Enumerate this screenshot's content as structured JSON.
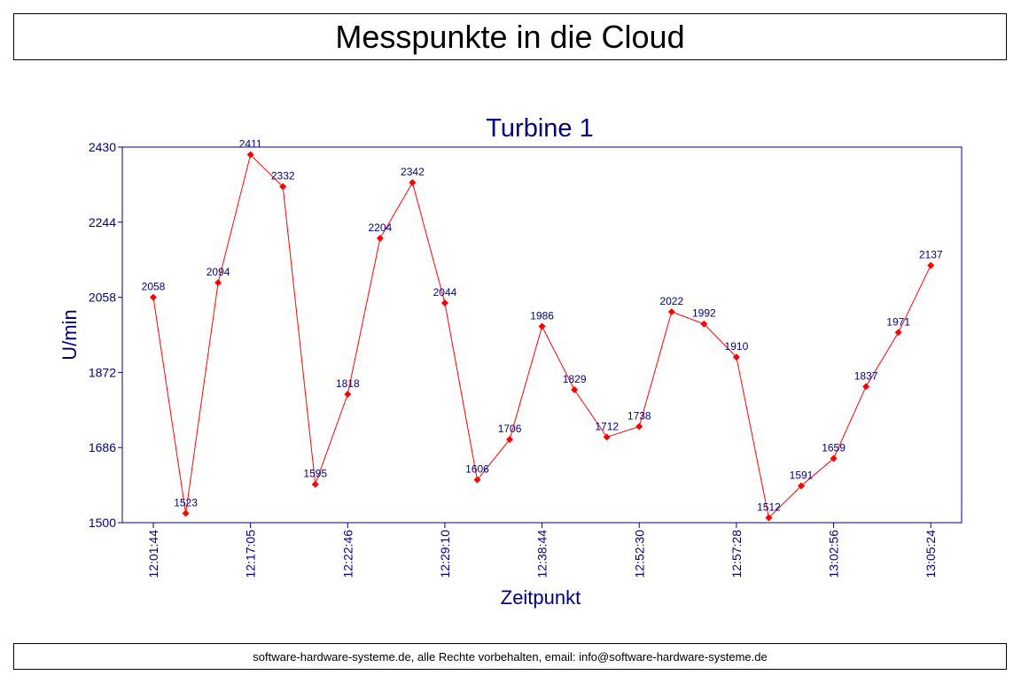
{
  "header": {
    "title": "Messpunkte in die Cloud"
  },
  "footer": {
    "text": "software-hardware-systeme.de, alle Rechte vorbehalten, email: info@software-hardware-systeme.de"
  },
  "colors": {
    "text": "#00007f",
    "line": "#ff0000",
    "marker": "#ff0000",
    "frame": "#000080"
  },
  "chart_data": {
    "type": "line",
    "title": "Turbine 1",
    "xlabel": "Zeitpunkt",
    "ylabel": "U/min",
    "ylim": [
      1500,
      2430
    ],
    "yticks": [
      1500,
      1686,
      1872,
      2058,
      2244,
      2430
    ],
    "grid": false,
    "legend": "none",
    "values": [
      2058,
      1523,
      2094,
      2411,
      2332,
      1595,
      1818,
      2204,
      2342,
      2044,
      1606,
      1706,
      1986,
      1829,
      1712,
      1738,
      2022,
      1992,
      1910,
      1512,
      1591,
      1659,
      1837,
      1971,
      2137
    ],
    "xtick_labels": [
      {
        "index": 0,
        "label": "12:01:44"
      },
      {
        "index": 3,
        "label": "12:17:05"
      },
      {
        "index": 6,
        "label": "12:22:46"
      },
      {
        "index": 9,
        "label": "12:29:10"
      },
      {
        "index": 12,
        "label": "12:38:44"
      },
      {
        "index": 15,
        "label": "12:52:30"
      },
      {
        "index": 18,
        "label": "12:57:28"
      },
      {
        "index": 21,
        "label": "13:02:56"
      },
      {
        "index": 24,
        "label": "13:05:24"
      }
    ]
  }
}
